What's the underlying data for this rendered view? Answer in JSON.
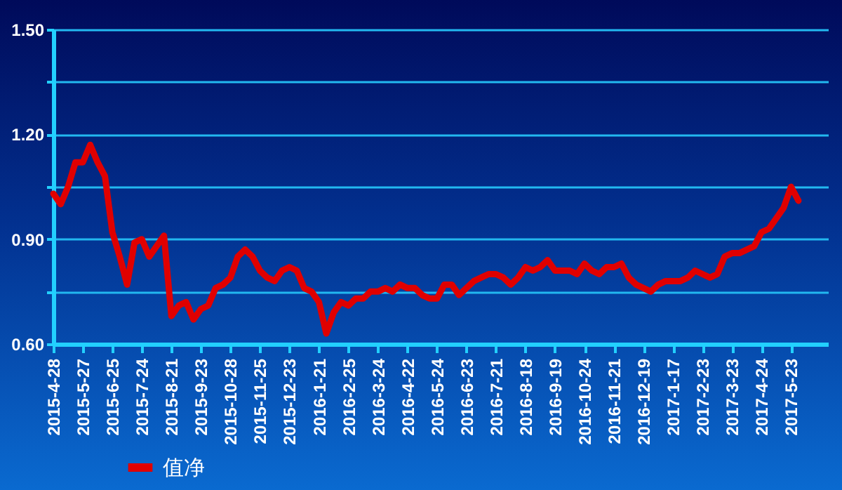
{
  "chart_data": {
    "type": "line",
    "categories": [
      "2015-4-28",
      null,
      null,
      null,
      "2015-5-27",
      null,
      null,
      null,
      "2015-6-25",
      null,
      null,
      null,
      "2015-7-24",
      null,
      null,
      null,
      "2015-8-21",
      null,
      null,
      null,
      "2015-9-23",
      null,
      null,
      null,
      "2015-10-28",
      null,
      null,
      null,
      "2015-11-25",
      null,
      null,
      null,
      "2015-12-23",
      null,
      null,
      null,
      "2016-1-21",
      null,
      null,
      null,
      "2016-2-25",
      null,
      null,
      null,
      "2016-3-24",
      null,
      null,
      null,
      "2016-4-22",
      null,
      null,
      null,
      "2016-5-24",
      null,
      null,
      null,
      "2016-6-23",
      null,
      null,
      null,
      "2016-7-21",
      null,
      null,
      null,
      "2016-8-18",
      null,
      null,
      null,
      "2016-9-19",
      null,
      null,
      null,
      "2016-10-24",
      null,
      null,
      null,
      "2016-11-21",
      null,
      null,
      null,
      "2016-12-19",
      null,
      null,
      null,
      "2017-1-17",
      null,
      null,
      null,
      "2017-2-23",
      null,
      null,
      null,
      "2017-3-23",
      null,
      null,
      null,
      "2017-4-24",
      null,
      null,
      null,
      "2017-5-23",
      null,
      null,
      null,
      null,
      null
    ],
    "series": [
      {
        "name": "值净",
        "color": "#e00000",
        "values": [
          1.03,
          1.0,
          1.05,
          1.12,
          1.12,
          1.17,
          1.12,
          1.08,
          0.92,
          0.85,
          0.77,
          0.89,
          0.9,
          0.85,
          0.88,
          0.91,
          0.68,
          0.71,
          0.72,
          0.67,
          0.7,
          0.71,
          0.76,
          0.77,
          0.79,
          0.85,
          0.87,
          0.85,
          0.81,
          0.79,
          0.78,
          0.81,
          0.82,
          0.81,
          0.76,
          0.75,
          0.72,
          0.63,
          0.69,
          0.72,
          0.71,
          0.73,
          0.73,
          0.75,
          0.75,
          0.76,
          0.75,
          0.77,
          0.76,
          0.76,
          0.74,
          0.73,
          0.73,
          0.77,
          0.77,
          0.74,
          0.76,
          0.78,
          0.79,
          0.8,
          0.8,
          0.79,
          0.77,
          0.79,
          0.82,
          0.81,
          0.82,
          0.84,
          0.81,
          0.81,
          0.81,
          0.8,
          0.83,
          0.81,
          0.8,
          0.82,
          0.82,
          0.83,
          0.79,
          0.77,
          0.76,
          0.75,
          0.77,
          0.78,
          0.78,
          0.78,
          0.79,
          0.81,
          0.8,
          0.79,
          0.8,
          0.85,
          0.86,
          0.86,
          0.87,
          0.88,
          0.92,
          0.93,
          0.96,
          0.99,
          1.05,
          1.01,
          null,
          null,
          null,
          null
        ]
      }
    ],
    "ylim": [
      0.6,
      1.5
    ],
    "yticks": [
      {
        "value": 0.6,
        "label": "0.60"
      },
      {
        "value": 0.75,
        "label": null
      },
      {
        "value": 0.9,
        "label": "0.90"
      },
      {
        "value": 1.05,
        "label": null
      },
      {
        "value": 1.2,
        "label": "1.20"
      },
      {
        "value": 1.35,
        "label": null
      },
      {
        "value": 1.5,
        "label": "1.50"
      }
    ],
    "grid": "y",
    "legend": "bottom",
    "marker": "none",
    "line_style": "solid"
  }
}
